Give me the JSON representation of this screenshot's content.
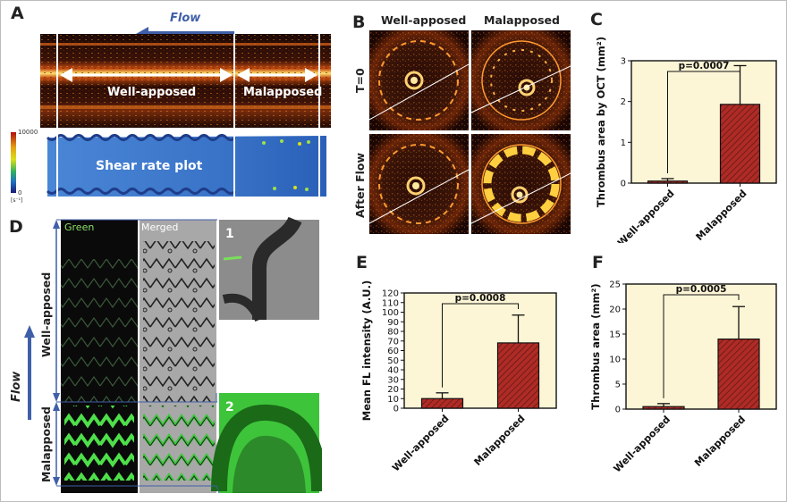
{
  "panels": {
    "a": {
      "label": "A",
      "flow_label": "Flow",
      "oct_region1": "Well-apposed",
      "oct_region2": "Malapposed",
      "shear_label": "Shear rate plot",
      "colorbar_max": "10000",
      "colorbar_min": "0",
      "colorbar_unit": "[s⁻¹]"
    },
    "b": {
      "label": "B",
      "col1": "Well-apposed",
      "col2": "Malapposed",
      "row1": "T=0",
      "row2": "After Flow"
    },
    "d": {
      "label": "D",
      "col_green": "Green",
      "col_merged": "Merged",
      "inset1": "1",
      "inset2": "2",
      "region_well": "Well-apposed",
      "region_mal": "Malapposed",
      "flow_label": "Flow"
    }
  },
  "colors": {
    "bar_fill": "#b02b25",
    "bar_hatch": "#5e1a18",
    "plot_bg": "#fdf6d6",
    "arrow": "#3f5fa8"
  },
  "chart_data": [
    {
      "id": "C",
      "panel_label": "C",
      "type": "bar",
      "categories": [
        "Well-apposed",
        "Malapposed"
      ],
      "values": [
        0.05,
        1.93
      ],
      "errors": [
        0.06,
        0.95
      ],
      "ylabel": "Thrombus area by OCT (mm²)",
      "ylim": [
        0,
        3
      ],
      "yticks": [
        0,
        1,
        2,
        3
      ],
      "annotation": "p=0.0007"
    },
    {
      "id": "E",
      "panel_label": "E",
      "type": "bar",
      "categories": [
        "Well-apposed",
        "Malapposed"
      ],
      "values": [
        10,
        68
      ],
      "errors": [
        6,
        29
      ],
      "ylabel": "Mean FL intensity (A.U.)",
      "ylim": [
        0,
        120
      ],
      "yticks": [
        0,
        10,
        20,
        30,
        40,
        50,
        60,
        70,
        80,
        90,
        100,
        110,
        120
      ],
      "annotation": "p=0.0008"
    },
    {
      "id": "F",
      "panel_label": "F",
      "type": "bar",
      "categories": [
        "Well-apposed",
        "Malapposed"
      ],
      "values": [
        0.5,
        14
      ],
      "errors": [
        0.6,
        6.5
      ],
      "ylabel": "Thrombus area (mm²)",
      "ylim": [
        0,
        25
      ],
      "yticks": [
        0,
        5,
        10,
        15,
        20,
        25
      ],
      "annotation": "p=0.0005"
    }
  ]
}
